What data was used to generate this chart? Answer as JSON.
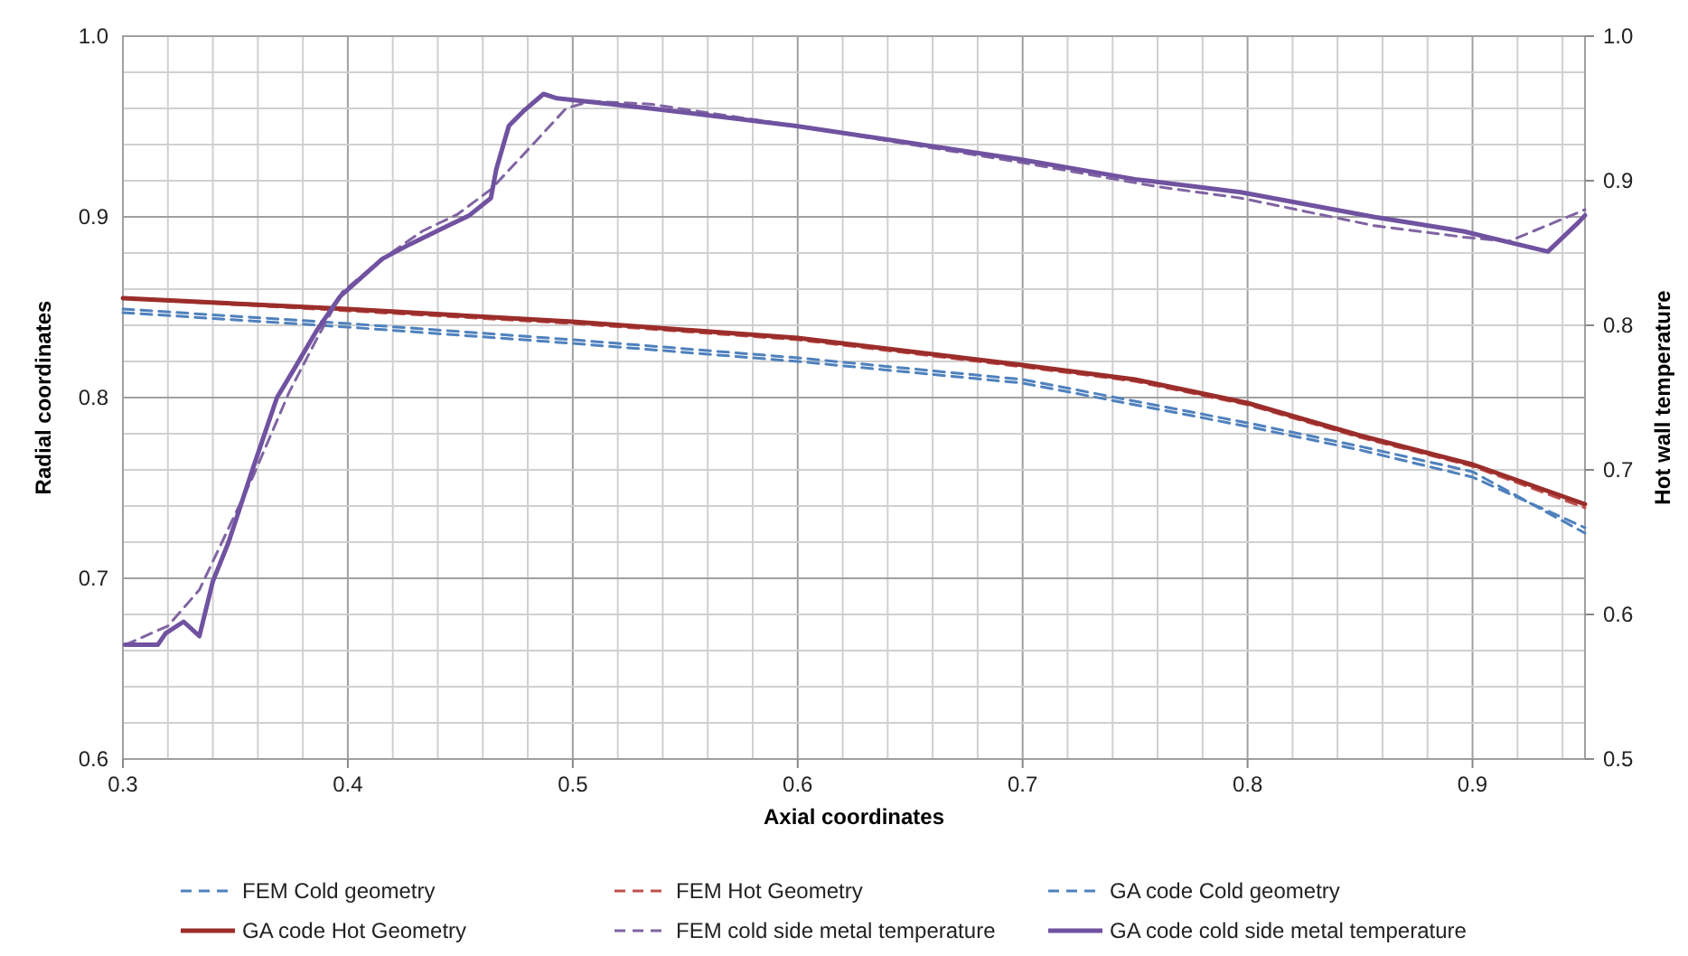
{
  "chart_data": {
    "type": "line",
    "xlabel": "Axial coordinates",
    "ylabel": "Radial coordinates",
    "y2label": "Hot wall temperature",
    "xlim": [
      0.3,
      0.95
    ],
    "xticks": [
      {
        "value": 0.3,
        "label": "0.3"
      },
      {
        "value": 0.32,
        "label": null
      },
      {
        "value": 0.34,
        "label": null
      },
      {
        "value": 0.36,
        "label": null
      },
      {
        "value": 0.38,
        "label": null
      },
      {
        "value": 0.4,
        "label": "0.4"
      },
      {
        "value": 0.42,
        "label": null
      },
      {
        "value": 0.44,
        "label": null
      },
      {
        "value": 0.46,
        "label": null
      },
      {
        "value": 0.48,
        "label": null
      },
      {
        "value": 0.5,
        "label": "0.5"
      },
      {
        "value": 0.52,
        "label": null
      },
      {
        "value": 0.54,
        "label": null
      },
      {
        "value": 0.56,
        "label": null
      },
      {
        "value": 0.58,
        "label": null
      },
      {
        "value": 0.6,
        "label": "0.6"
      },
      {
        "value": 0.62,
        "label": null
      },
      {
        "value": 0.64,
        "label": null
      },
      {
        "value": 0.66,
        "label": null
      },
      {
        "value": 0.68,
        "label": null
      },
      {
        "value": 0.7,
        "label": "0.7"
      },
      {
        "value": 0.72,
        "label": null
      },
      {
        "value": 0.74,
        "label": null
      },
      {
        "value": 0.76,
        "label": null
      },
      {
        "value": 0.78,
        "label": null
      },
      {
        "value": 0.8,
        "label": "0.8"
      },
      {
        "value": 0.82,
        "label": null
      },
      {
        "value": 0.84,
        "label": null
      },
      {
        "value": 0.86,
        "label": null
      },
      {
        "value": 0.88,
        "label": null
      },
      {
        "value": 0.9,
        "label": "0.9"
      },
      {
        "value": 0.92,
        "label": null
      },
      {
        "value": 0.94,
        "label": null
      }
    ],
    "ylim": [
      0.6,
      1.0
    ],
    "yticks": [
      {
        "value": 0.6,
        "label": "0.6"
      },
      {
        "value": 0.62,
        "label": null
      },
      {
        "value": 0.64,
        "label": null
      },
      {
        "value": 0.66,
        "label": null
      },
      {
        "value": 0.68,
        "label": null
      },
      {
        "value": 0.7,
        "label": "0.7"
      },
      {
        "value": 0.72,
        "label": null
      },
      {
        "value": 0.74,
        "label": null
      },
      {
        "value": 0.76,
        "label": null
      },
      {
        "value": 0.78,
        "label": null
      },
      {
        "value": 0.8,
        "label": "0.8"
      },
      {
        "value": 0.82,
        "label": null
      },
      {
        "value": 0.84,
        "label": null
      },
      {
        "value": 0.86,
        "label": null
      },
      {
        "value": 0.88,
        "label": null
      },
      {
        "value": 0.9,
        "label": "0.9"
      },
      {
        "value": 0.92,
        "label": null
      },
      {
        "value": 0.94,
        "label": null
      },
      {
        "value": 0.96,
        "label": null
      },
      {
        "value": 0.98,
        "label": null
      },
      {
        "value": 1.0,
        "label": "1.0"
      }
    ],
    "y2lim": [
      0.5,
      1.0
    ],
    "y2ticks": [
      {
        "value": 0.5,
        "label": "0.5"
      },
      {
        "value": 0.6,
        "label": "0.6"
      },
      {
        "value": 0.7,
        "label": "0.7"
      },
      {
        "value": 0.8,
        "label": "0.8"
      },
      {
        "value": 0.9,
        "label": "0.9"
      },
      {
        "value": 1.0,
        "label": "1.0"
      }
    ],
    "grid": true,
    "legend": "bottom",
    "marker": "none",
    "series": [
      {
        "name": "FEM Cold geometry",
        "color": "#4f81bd",
        "line_style": "dashed",
        "x": [
          0.3,
          0.4,
          0.5,
          0.6,
          0.7,
          0.8,
          0.85,
          0.9,
          0.95
        ],
        "values": [
          0.849,
          0.841,
          0.832,
          0.822,
          0.81,
          0.786,
          0.773,
          0.759,
          0.725
        ]
      },
      {
        "name": "FEM Hot Geometry",
        "color": "#c0504d",
        "line_style": "dashed",
        "x": [
          0.3,
          0.4,
          0.5,
          0.6,
          0.7,
          0.75,
          0.8,
          0.85,
          0.9,
          0.95
        ],
        "values": [
          0.855,
          0.848,
          0.841,
          0.832,
          0.817,
          0.809,
          0.796,
          0.778,
          0.762,
          0.739
        ]
      },
      {
        "name": "GA code Cold geometry",
        "color": "#4f81bd",
        "line_style": "dashed",
        "x": [
          0.3,
          0.4,
          0.5,
          0.6,
          0.7,
          0.8,
          0.85,
          0.9,
          0.95
        ],
        "values": [
          0.847,
          0.839,
          0.83,
          0.82,
          0.808,
          0.784,
          0.771,
          0.756,
          0.728
        ]
      },
      {
        "name": "GA code Hot Geometry",
        "color": "#9b2d2a",
        "line_style": "solid",
        "x": [
          0.3,
          0.4,
          0.5,
          0.6,
          0.7,
          0.75,
          0.8,
          0.85,
          0.9,
          0.95
        ],
        "values": [
          0.855,
          0.849,
          0.842,
          0.833,
          0.818,
          0.81,
          0.797,
          0.779,
          0.763,
          0.741
        ]
      },
      {
        "name": "FEM cold side metal temperature",
        "color": "#8064a2",
        "line_style": "dashed",
        "axis": "y2",
        "x": [
          0.301,
          0.32,
          0.334,
          0.348,
          0.358,
          0.374,
          0.386,
          0.3975,
          0.4154,
          0.433,
          0.449,
          0.4636,
          0.481,
          0.497,
          0.5078,
          0.5345,
          0.5988,
          0.698,
          0.7594,
          0.797,
          0.856,
          0.896,
          0.916,
          0.947,
          0.95
        ],
        "values": [
          0.579,
          0.592,
          0.617,
          0.663,
          0.696,
          0.754,
          0.79,
          0.823,
          0.846,
          0.865,
          0.877,
          0.894,
          0.923,
          0.95,
          0.955,
          0.953,
          0.938,
          0.913,
          0.896,
          0.888,
          0.869,
          0.861,
          0.858,
          0.878,
          0.88
        ]
      },
      {
        "name": "GA code cold side metal temperature",
        "color": "#7052a0",
        "line_style": "solid",
        "axis": "y2",
        "x": [
          0.301,
          0.3155,
          0.319,
          0.327,
          0.334,
          0.34,
          0.347,
          0.358,
          0.3685,
          0.3766,
          0.386,
          0.3966,
          0.406,
          0.4154,
          0.4275,
          0.446,
          0.454,
          0.4636,
          0.466,
          0.4716,
          0.478,
          0.487,
          0.493,
          0.5345,
          0.5988,
          0.698,
          0.75,
          0.797,
          0.856,
          0.896,
          0.9335,
          0.947,
          0.95
        ],
        "values": [
          0.579,
          0.579,
          0.587,
          0.595,
          0.585,
          0.623,
          0.65,
          0.702,
          0.75,
          0.771,
          0.796,
          0.82,
          0.833,
          0.846,
          0.856,
          0.87,
          0.876,
          0.888,
          0.908,
          0.938,
          0.948,
          0.96,
          0.957,
          0.95,
          0.938,
          0.915,
          0.901,
          0.892,
          0.875,
          0.865,
          0.851,
          0.871,
          0.876
        ]
      }
    ]
  }
}
